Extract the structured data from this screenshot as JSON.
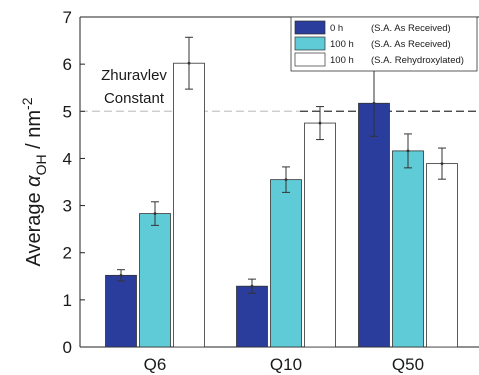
{
  "chart_data": {
    "type": "bar",
    "title": "",
    "xlabel": "",
    "ylabel": "Average α_OH / nm⁻²",
    "ylabel_parts": {
      "main": "Average ",
      "symbol": "α",
      "subscript": "OH",
      "unit": " / nm",
      "superscript": "-2"
    },
    "ylim": [
      0,
      7
    ],
    "yticks": [
      "0",
      "1",
      "2",
      "3",
      "4",
      "5",
      "6",
      "7"
    ],
    "categories": [
      "Q6",
      "Q10",
      "Q50"
    ],
    "series": [
      {
        "name": "0 h",
        "note": "(S.A. As Received)",
        "color": "#2a3c9c",
        "values": [
          1.52,
          1.29,
          5.17
        ],
        "errors": [
          0.12,
          0.15,
          0.7
        ]
      },
      {
        "name": "100 h",
        "note": "(S.A. As Received)",
        "color": "#5fcbd6",
        "values": [
          2.83,
          3.55,
          4.16
        ],
        "errors": [
          0.25,
          0.27,
          0.36
        ]
      },
      {
        "name": "100 h",
        "note": "(S.A. Rehydroxylated)",
        "color": "#ffffff",
        "values": [
          6.02,
          4.75,
          3.89
        ],
        "errors": [
          0.55,
          0.35,
          0.33
        ]
      }
    ],
    "reference_line": {
      "value": 5.0,
      "label_line1": "Zhuravlev",
      "label_line2": "Constant"
    },
    "legend_position": "top-right",
    "grid": false
  }
}
